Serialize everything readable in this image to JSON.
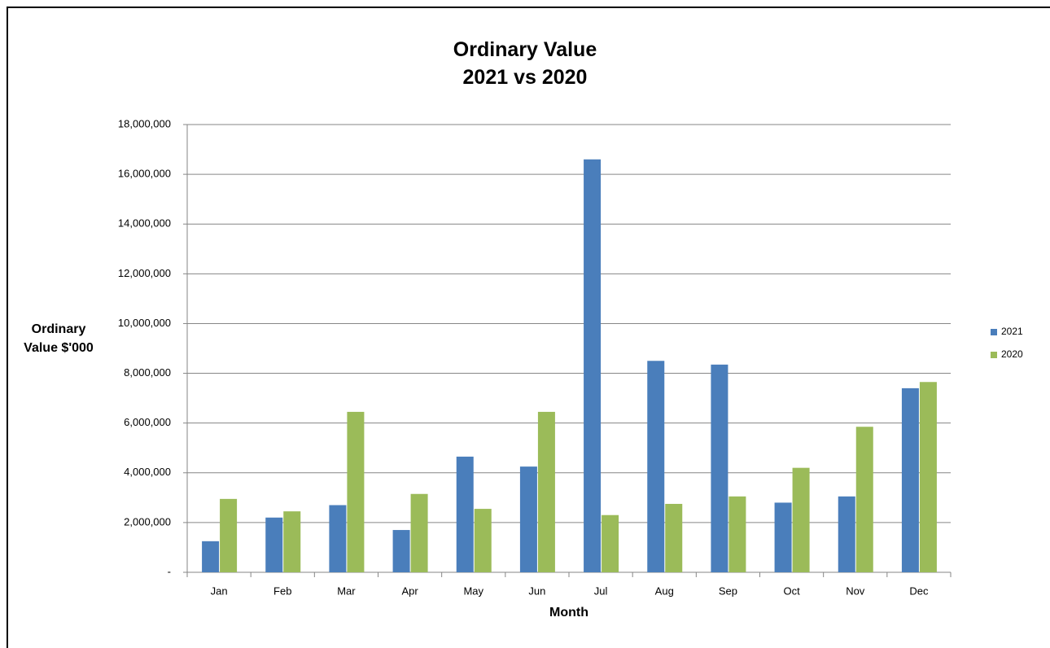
{
  "chart_data": {
    "type": "bar",
    "title": "Ordinary Value\n2021 vs 2020",
    "x_label": "Month",
    "y_label": "Ordinary Value $'000",
    "categories": [
      "Jan",
      "Feb",
      "Mar",
      "Apr",
      "May",
      "Jun",
      "Jul",
      "Aug",
      "Sep",
      "Oct",
      "Nov",
      "Dec"
    ],
    "series": [
      {
        "name": "2021",
        "color": "#4a7ebb",
        "values": [
          1250000,
          2200000,
          2700000,
          1700000,
          4650000,
          4250000,
          16600000,
          8500000,
          8350000,
          2800000,
          3050000,
          7400000
        ]
      },
      {
        "name": "2020",
        "color": "#9bbb59",
        "values": [
          2950000,
          2450000,
          6450000,
          3150000,
          2550000,
          6450000,
          2300000,
          2750000,
          3050000,
          4200000,
          5850000,
          7650000
        ]
      }
    ],
    "ylim": [
      0,
      18000000
    ],
    "yticks": [
      {
        "value": 0,
        "label": "-"
      },
      {
        "value": 2000000,
        "label": "2,000,000"
      },
      {
        "value": 4000000,
        "label": "4,000,000"
      },
      {
        "value": 6000000,
        "label": "6,000,000"
      },
      {
        "value": 8000000,
        "label": "8,000,000"
      },
      {
        "value": 10000000,
        "label": "10,000,000"
      },
      {
        "value": 12000000,
        "label": "12,000,000"
      },
      {
        "value": 14000000,
        "label": "14,000,000"
      },
      {
        "value": 16000000,
        "label": "16,000,000"
      },
      {
        "value": 18000000,
        "label": "18,000,000"
      }
    ],
    "grid": true,
    "legend": "right"
  }
}
